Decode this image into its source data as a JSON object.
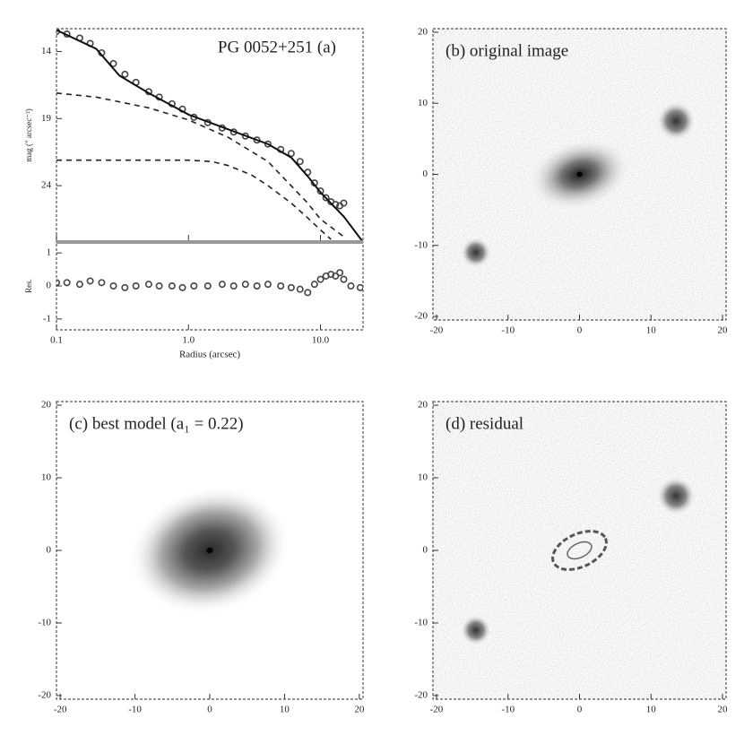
{
  "chart_data": [
    {
      "type": "line",
      "title": "PG 0052+251 (a)",
      "ylabel": "mag (\" arcsec⁻²)",
      "xlog": true,
      "xlim": [
        0.1,
        21
      ],
      "ylim": [
        28.2,
        12.3
      ],
      "yticks": [
        14,
        19,
        24
      ],
      "series": [
        {
          "style": "markers",
          "color": "#444444",
          "x": [
            0.1,
            0.12,
            0.15,
            0.18,
            0.22,
            0.27,
            0.33,
            0.4,
            0.5,
            0.6,
            0.75,
            0.9,
            1.1,
            1.4,
            1.8,
            2.2,
            2.7,
            3.3,
            4,
            5,
            6,
            7,
            8,
            9,
            10,
            11,
            12,
            13,
            14,
            15
          ],
          "values": [
            12.5,
            12.7,
            13.0,
            13.4,
            14.1,
            14.9,
            15.7,
            16.3,
            17.0,
            17.4,
            17.9,
            18.3,
            18.9,
            19.3,
            19.7,
            20.0,
            20.3,
            20.6,
            20.9,
            21.3,
            21.6,
            22.2,
            23.0,
            23.8,
            24.4,
            24.9,
            25.2,
            25.4,
            25.5,
            25.3
          ]
        },
        {
          "style": "solid",
          "color": "#111111",
          "x": [
            0.1,
            0.2,
            0.3,
            0.5,
            1,
            2,
            4,
            6,
            8,
            10,
            15,
            21
          ],
          "values": [
            12.4,
            13.8,
            15.8,
            17.1,
            18.7,
            19.8,
            20.9,
            21.9,
            23.3,
            24.5,
            26.3,
            28.2
          ]
        },
        {
          "style": "dashed",
          "color": "#222222",
          "x": [
            0.1,
            0.2,
            0.5,
            1,
            2,
            4,
            8,
            10,
            15
          ],
          "values": [
            17.1,
            17.4,
            18.2,
            19.1,
            20.4,
            22.2,
            25.3,
            26.5,
            27.8
          ]
        },
        {
          "style": "dashed",
          "color": "#222222",
          "x": [
            0.1,
            0.5,
            1,
            1.5,
            2,
            3,
            4,
            6,
            8,
            10,
            12
          ],
          "values": [
            22.1,
            22.1,
            22.1,
            22.2,
            22.5,
            23.2,
            24.0,
            25.3,
            26.4,
            27.3,
            28.0
          ]
        }
      ]
    },
    {
      "type": "line",
      "ylabel": "Res.",
      "xlabel": "Radius (arcsec)",
      "xlog": true,
      "xlim": [
        0.1,
        21
      ],
      "ylim": [
        -1.33,
        1.33
      ],
      "xticks": [
        0.1,
        {
          "value": 1,
          "label": "1.0"
        },
        {
          "value": 10,
          "label": "10.0"
        }
      ],
      "yticks": [
        -1,
        0,
        1
      ],
      "series": [
        {
          "style": "markers",
          "color": "#444444",
          "x": [
            0.1,
            0.12,
            0.15,
            0.18,
            0.22,
            0.27,
            0.33,
            0.4,
            0.5,
            0.6,
            0.75,
            0.9,
            1.1,
            1.4,
            1.8,
            2.2,
            2.7,
            3.3,
            4,
            5,
            6,
            7,
            8,
            9,
            10,
            11,
            12,
            13,
            14,
            15,
            17,
            20
          ],
          "values": [
            0.1,
            0.1,
            0.05,
            0.15,
            0.1,
            0.0,
            -0.05,
            0.0,
            0.05,
            0.0,
            0.0,
            -0.05,
            0.0,
            0.0,
            0.05,
            0.0,
            0.05,
            0.0,
            0.05,
            0.0,
            -0.05,
            -0.1,
            -0.2,
            0.05,
            0.2,
            0.3,
            0.35,
            0.3,
            0.4,
            0.2,
            0.0,
            -0.05
          ]
        }
      ]
    },
    {
      "type": "image",
      "title": "(b) original image",
      "xlim": [
        -20.5,
        20.5
      ],
      "ylim": [
        -20.5,
        20.5
      ],
      "xticks": [
        -20,
        -10,
        0,
        10,
        20
      ],
      "yticks": [
        -20,
        -10,
        0,
        10,
        20
      ]
    },
    {
      "type": "image",
      "title": "(c) best model (a₁ = 0.22)",
      "xlim": [
        -20.5,
        20.5
      ],
      "ylim": [
        -20.5,
        20.5
      ],
      "xticks": [
        -20,
        -10,
        0,
        10,
        20
      ],
      "yticks": [
        -20,
        -10,
        0,
        10,
        20
      ]
    },
    {
      "type": "image",
      "title": "(d) residual",
      "xlim": [
        -20.5,
        20.5
      ],
      "ylim": [
        -20.5,
        20.5
      ],
      "xticks": [
        -20,
        -10,
        0,
        10,
        20
      ],
      "yticks": [
        -20,
        -10,
        0,
        10,
        20
      ]
    }
  ]
}
